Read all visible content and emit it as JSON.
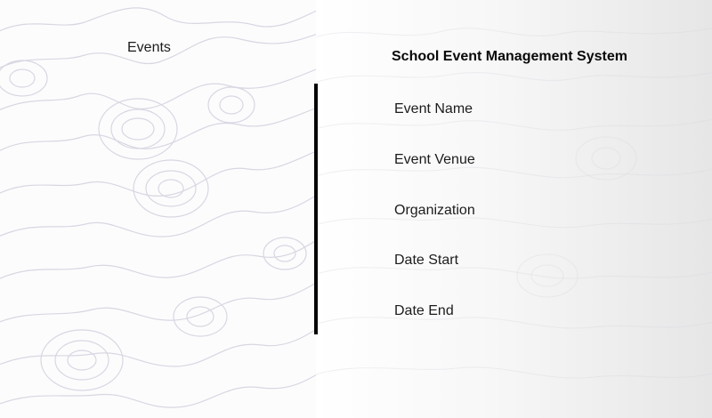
{
  "sidebar": {
    "events_label": "Events"
  },
  "main": {
    "title": "School Event Management System",
    "fields": [
      {
        "label": "Event Name"
      },
      {
        "label": "Event Venue"
      },
      {
        "label": "Organization"
      },
      {
        "label": "Date Start"
      },
      {
        "label": "Date End"
      }
    ]
  },
  "colors": {
    "contour_line": "#d8d7e2",
    "divider": "#050505",
    "text": "#1c1c1c"
  }
}
